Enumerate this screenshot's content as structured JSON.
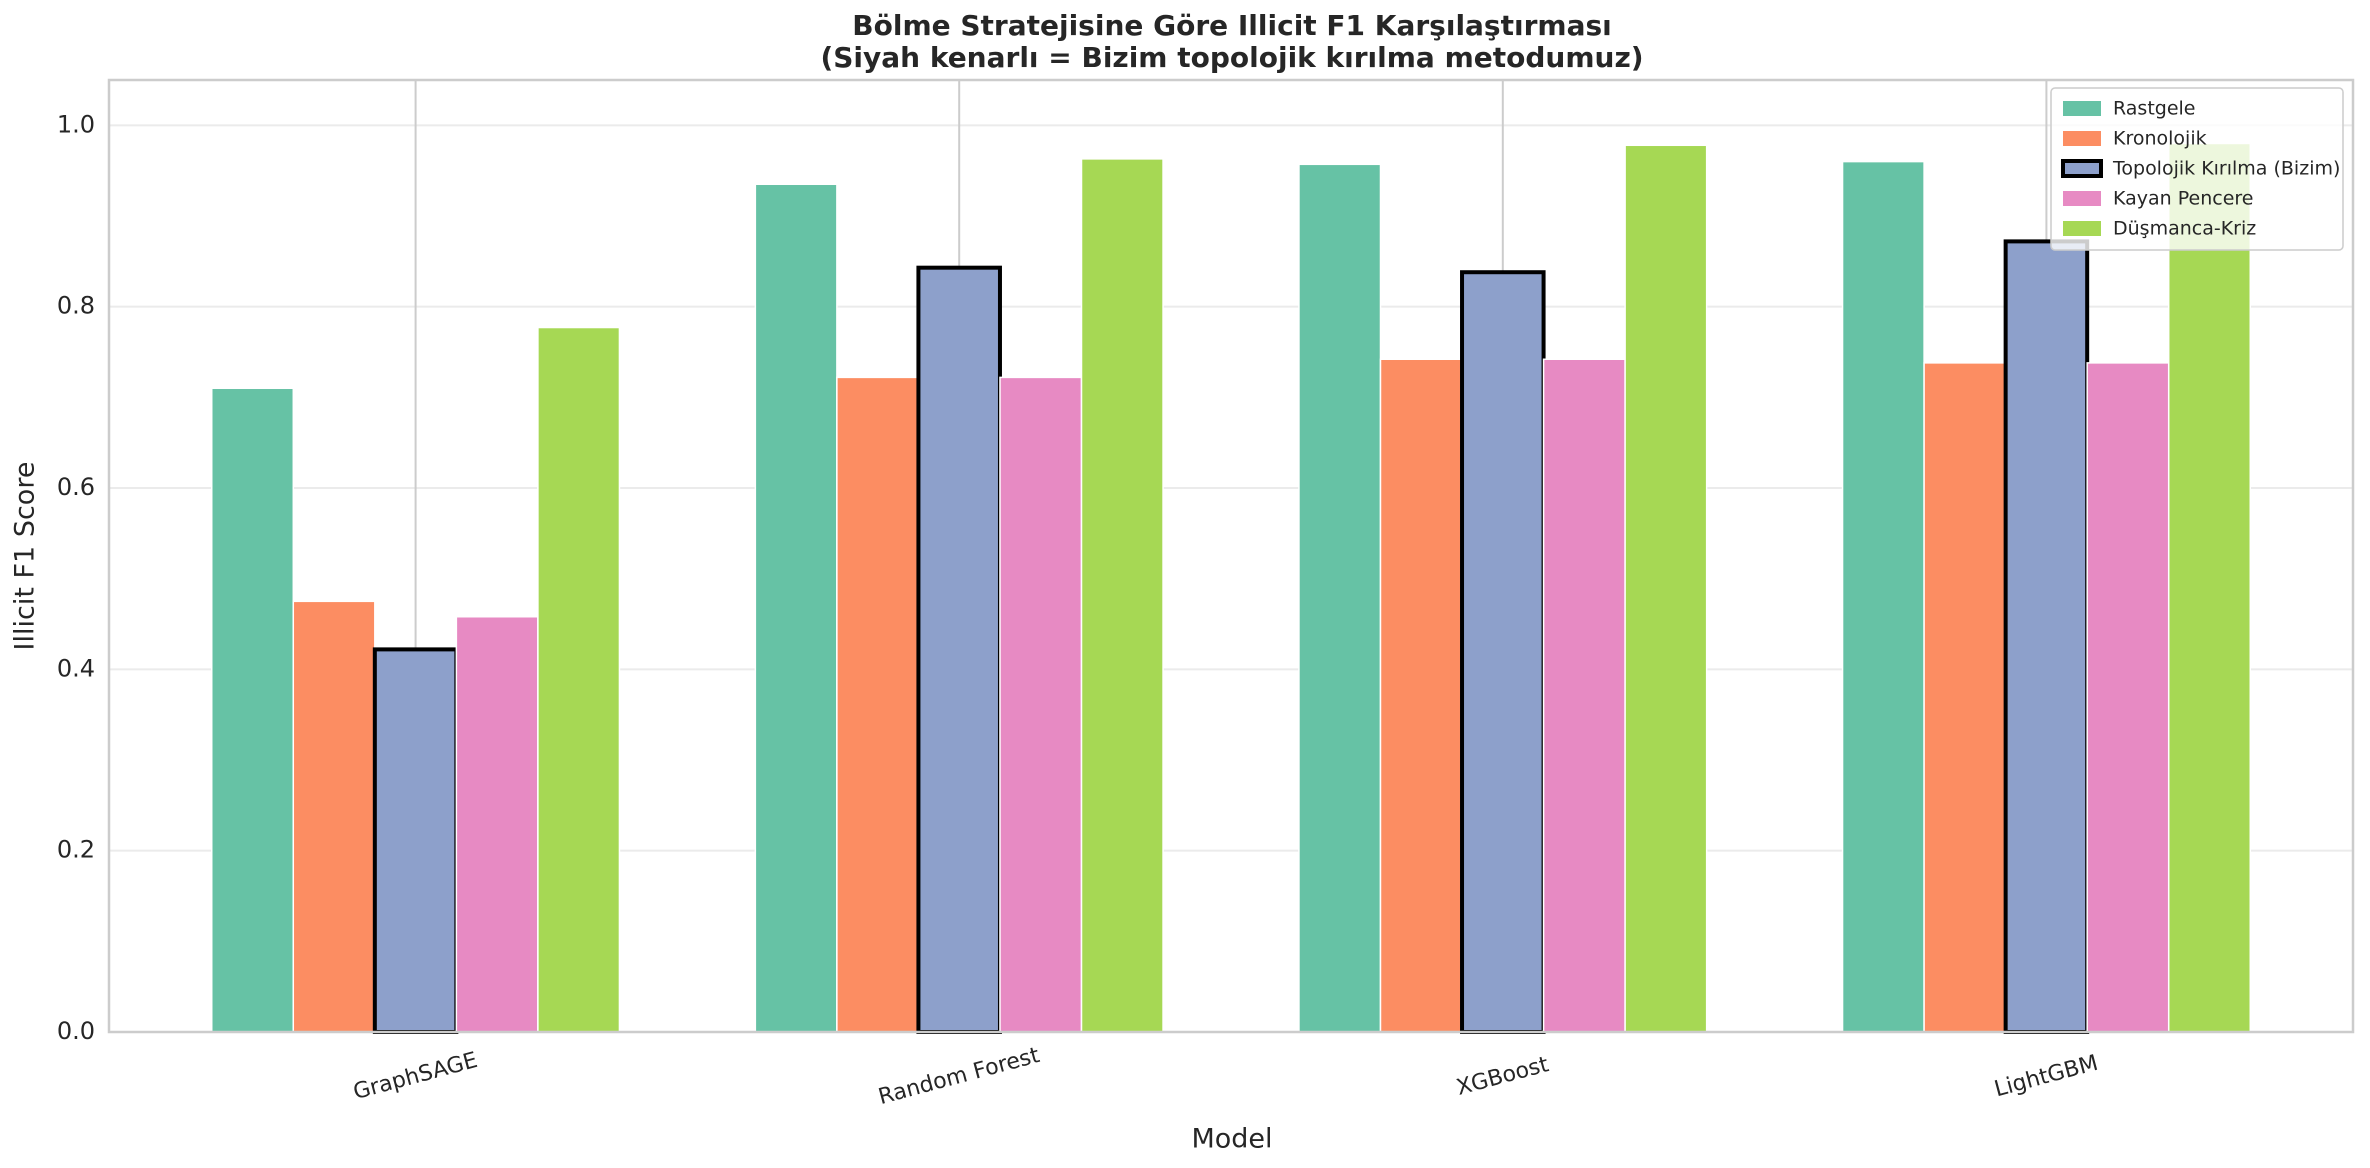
{
  "chart_data": {
    "type": "bar",
    "title": "Bölme Stratejisine Göre Illicit F1 Karşılaştırması",
    "subtitle": "(Siyah kenarlı = Bizim topolojik kırılma metodumuz)",
    "x_label": "Model",
    "y_label": "Illicit F1 Score",
    "categories": [
      "GraphSAGE",
      "Random Forest",
      "XGBoost",
      "LightGBM"
    ],
    "series": [
      {
        "name": "Rastgele",
        "color": "#66c2a5",
        "values": [
          0.71,
          0.935,
          0.957,
          0.96
        ]
      },
      {
        "name": "Kronolojik",
        "color": "#fc8d62",
        "values": [
          0.475,
          0.722,
          0.742,
          0.738
        ]
      },
      {
        "name": "Topolojik Kırılma (Bizim)",
        "color": "#8da0cb",
        "edgecolor": "#000000",
        "values": [
          0.422,
          0.843,
          0.838,
          0.872
        ]
      },
      {
        "name": "Kayan Pencere",
        "color": "#e78ac3",
        "values": [
          0.458,
          0.722,
          0.742,
          0.738
        ]
      },
      {
        "name": "Düşmanca-Kriz",
        "color": "#a6d854",
        "values": [
          0.777,
          0.963,
          0.978,
          0.98
        ]
      }
    ],
    "ylim": [
      0,
      1.05
    ],
    "yticks": [
      {
        "value": 0,
        "label": "0.0"
      },
      0.2,
      0.4,
      0.6,
      0.8,
      {
        "value": 1,
        "label": "1.0"
      }
    ],
    "grid": true,
    "legend": "upper right"
  }
}
